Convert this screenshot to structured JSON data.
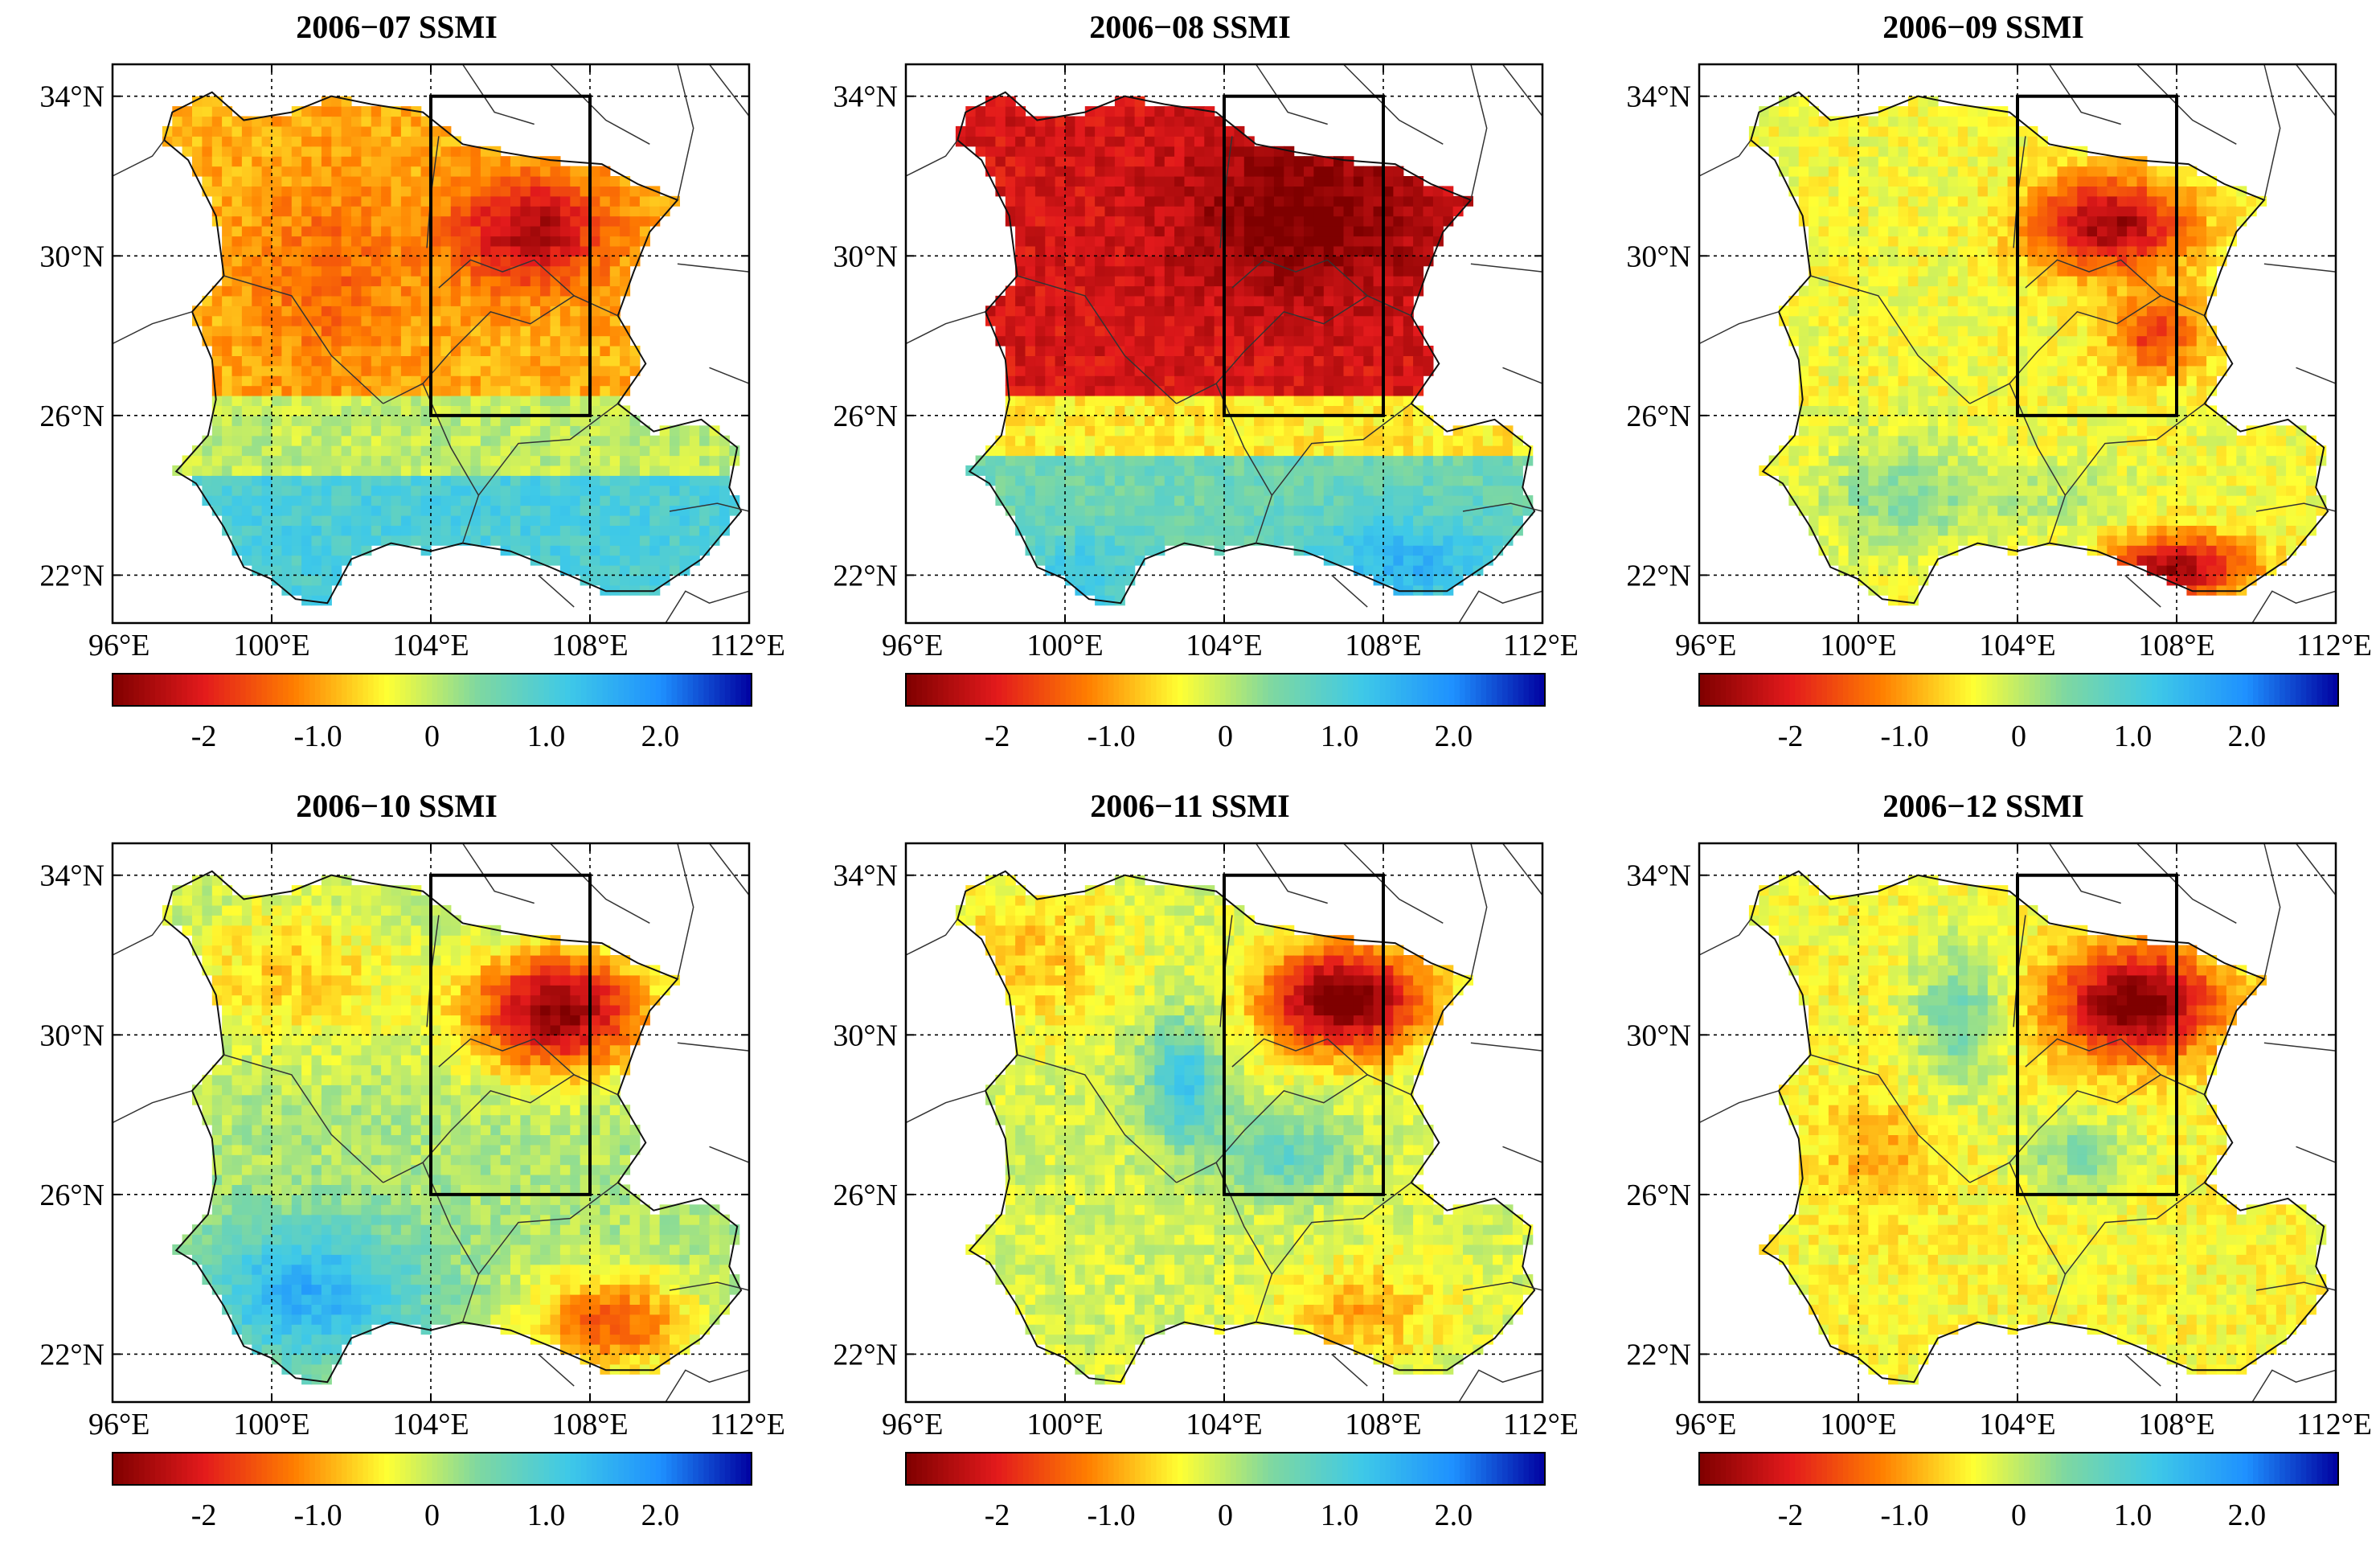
{
  "figure": {
    "panels": [
      {
        "title": "2006−07 SSMI",
        "pattern": "jul"
      },
      {
        "title": "2006−08 SSMI",
        "pattern": "aug"
      },
      {
        "title": "2006−09 SSMI",
        "pattern": "sep"
      },
      {
        "title": "2006−10 SSMI",
        "pattern": "oct"
      },
      {
        "title": "2006−11 SSMI",
        "pattern": "nov"
      },
      {
        "title": "2006−12 SSMI",
        "pattern": "dec"
      }
    ],
    "lat_ticks": [
      {
        "value": 34,
        "label": "34°N"
      },
      {
        "value": 30,
        "label": "30°N"
      },
      {
        "value": 26,
        "label": "26°N"
      },
      {
        "value": 22,
        "label": "22°N"
      }
    ],
    "lon_ticks": [
      {
        "value": 96,
        "label": "96°E"
      },
      {
        "value": 100,
        "label": "100°E"
      },
      {
        "value": 104,
        "label": "104°E"
      },
      {
        "value": 108,
        "label": "108°E"
      },
      {
        "value": 112,
        "label": "112°E"
      }
    ],
    "lon_range": [
      96,
      112
    ],
    "lat_range": [
      20.8,
      34.8
    ],
    "study_box": {
      "lon": [
        104,
        108
      ],
      "lat": [
        26,
        34
      ]
    },
    "colorbar": {
      "range": [
        -2.8,
        2.8
      ],
      "ticks": [
        {
          "value": -2,
          "label": "-2"
        },
        {
          "value": -1,
          "label": "-1.0"
        },
        {
          "value": 0,
          "label": "0"
        },
        {
          "value": 1,
          "label": "1.0"
        },
        {
          "value": 2,
          "label": "2.0"
        }
      ],
      "colors": [
        "#7f0000",
        "#e31a1c",
        "#ff7f00",
        "#ffff33",
        "#7fd8a0",
        "#3ec9e8",
        "#1e90ff",
        "#0000a0"
      ]
    }
  }
}
